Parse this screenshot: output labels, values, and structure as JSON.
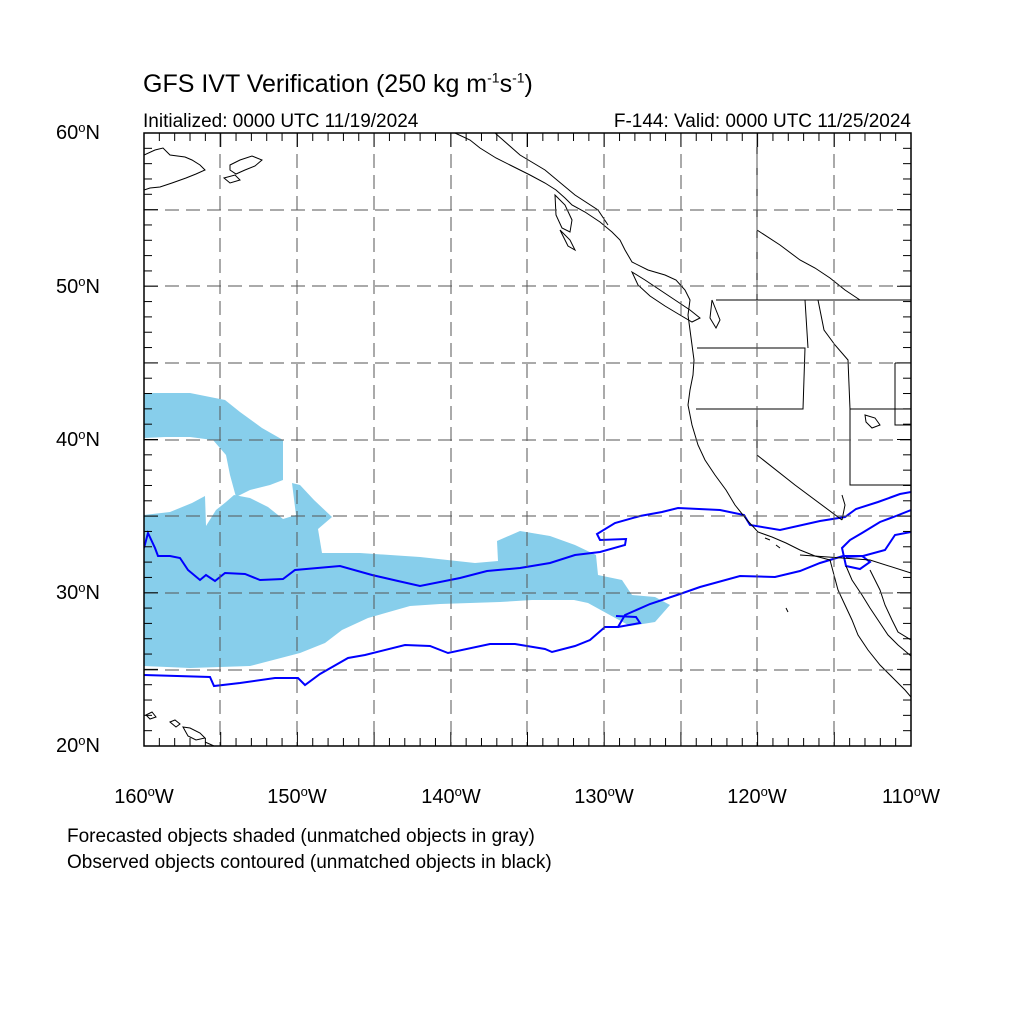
{
  "header": {
    "title_main": "GFS IVT Verification (250 kg m",
    "title_exp1": "-1",
    "title_mid": "s",
    "title_exp2": "-1",
    "title_end": ")",
    "initialized": "Initialized: 0000 UTC 11/19/2024",
    "valid": "F-144: Valid: 0000 UTC 11/25/2024"
  },
  "axes": {
    "lat_labels": [
      {
        "num": "60",
        "suffix": "N"
      },
      {
        "num": "50",
        "suffix": "N"
      },
      {
        "num": "40",
        "suffix": "N"
      },
      {
        "num": "30",
        "suffix": "N"
      },
      {
        "num": "20",
        "suffix": "N"
      }
    ],
    "lon_labels": [
      {
        "num": "160",
        "suffix": "W"
      },
      {
        "num": "150",
        "suffix": "W"
      },
      {
        "num": "140",
        "suffix": "W"
      },
      {
        "num": "130",
        "suffix": "W"
      },
      {
        "num": "120",
        "suffix": "W"
      },
      {
        "num": "110",
        "suffix": "W"
      }
    ],
    "lat_range": [
      20,
      60
    ],
    "lon_range": [
      -160,
      -110
    ],
    "degree_symbol": "o"
  },
  "legend": {
    "forecast_note": "Forecasted objects shaded (unmatched objects in gray)",
    "observed_note": "Observed objects contoured (unmatched objects in black)"
  },
  "colors": {
    "forecast_fill": "#87ceeb",
    "observed_contour": "#0000ff",
    "coast": "#000000",
    "grid": "#555555"
  }
}
